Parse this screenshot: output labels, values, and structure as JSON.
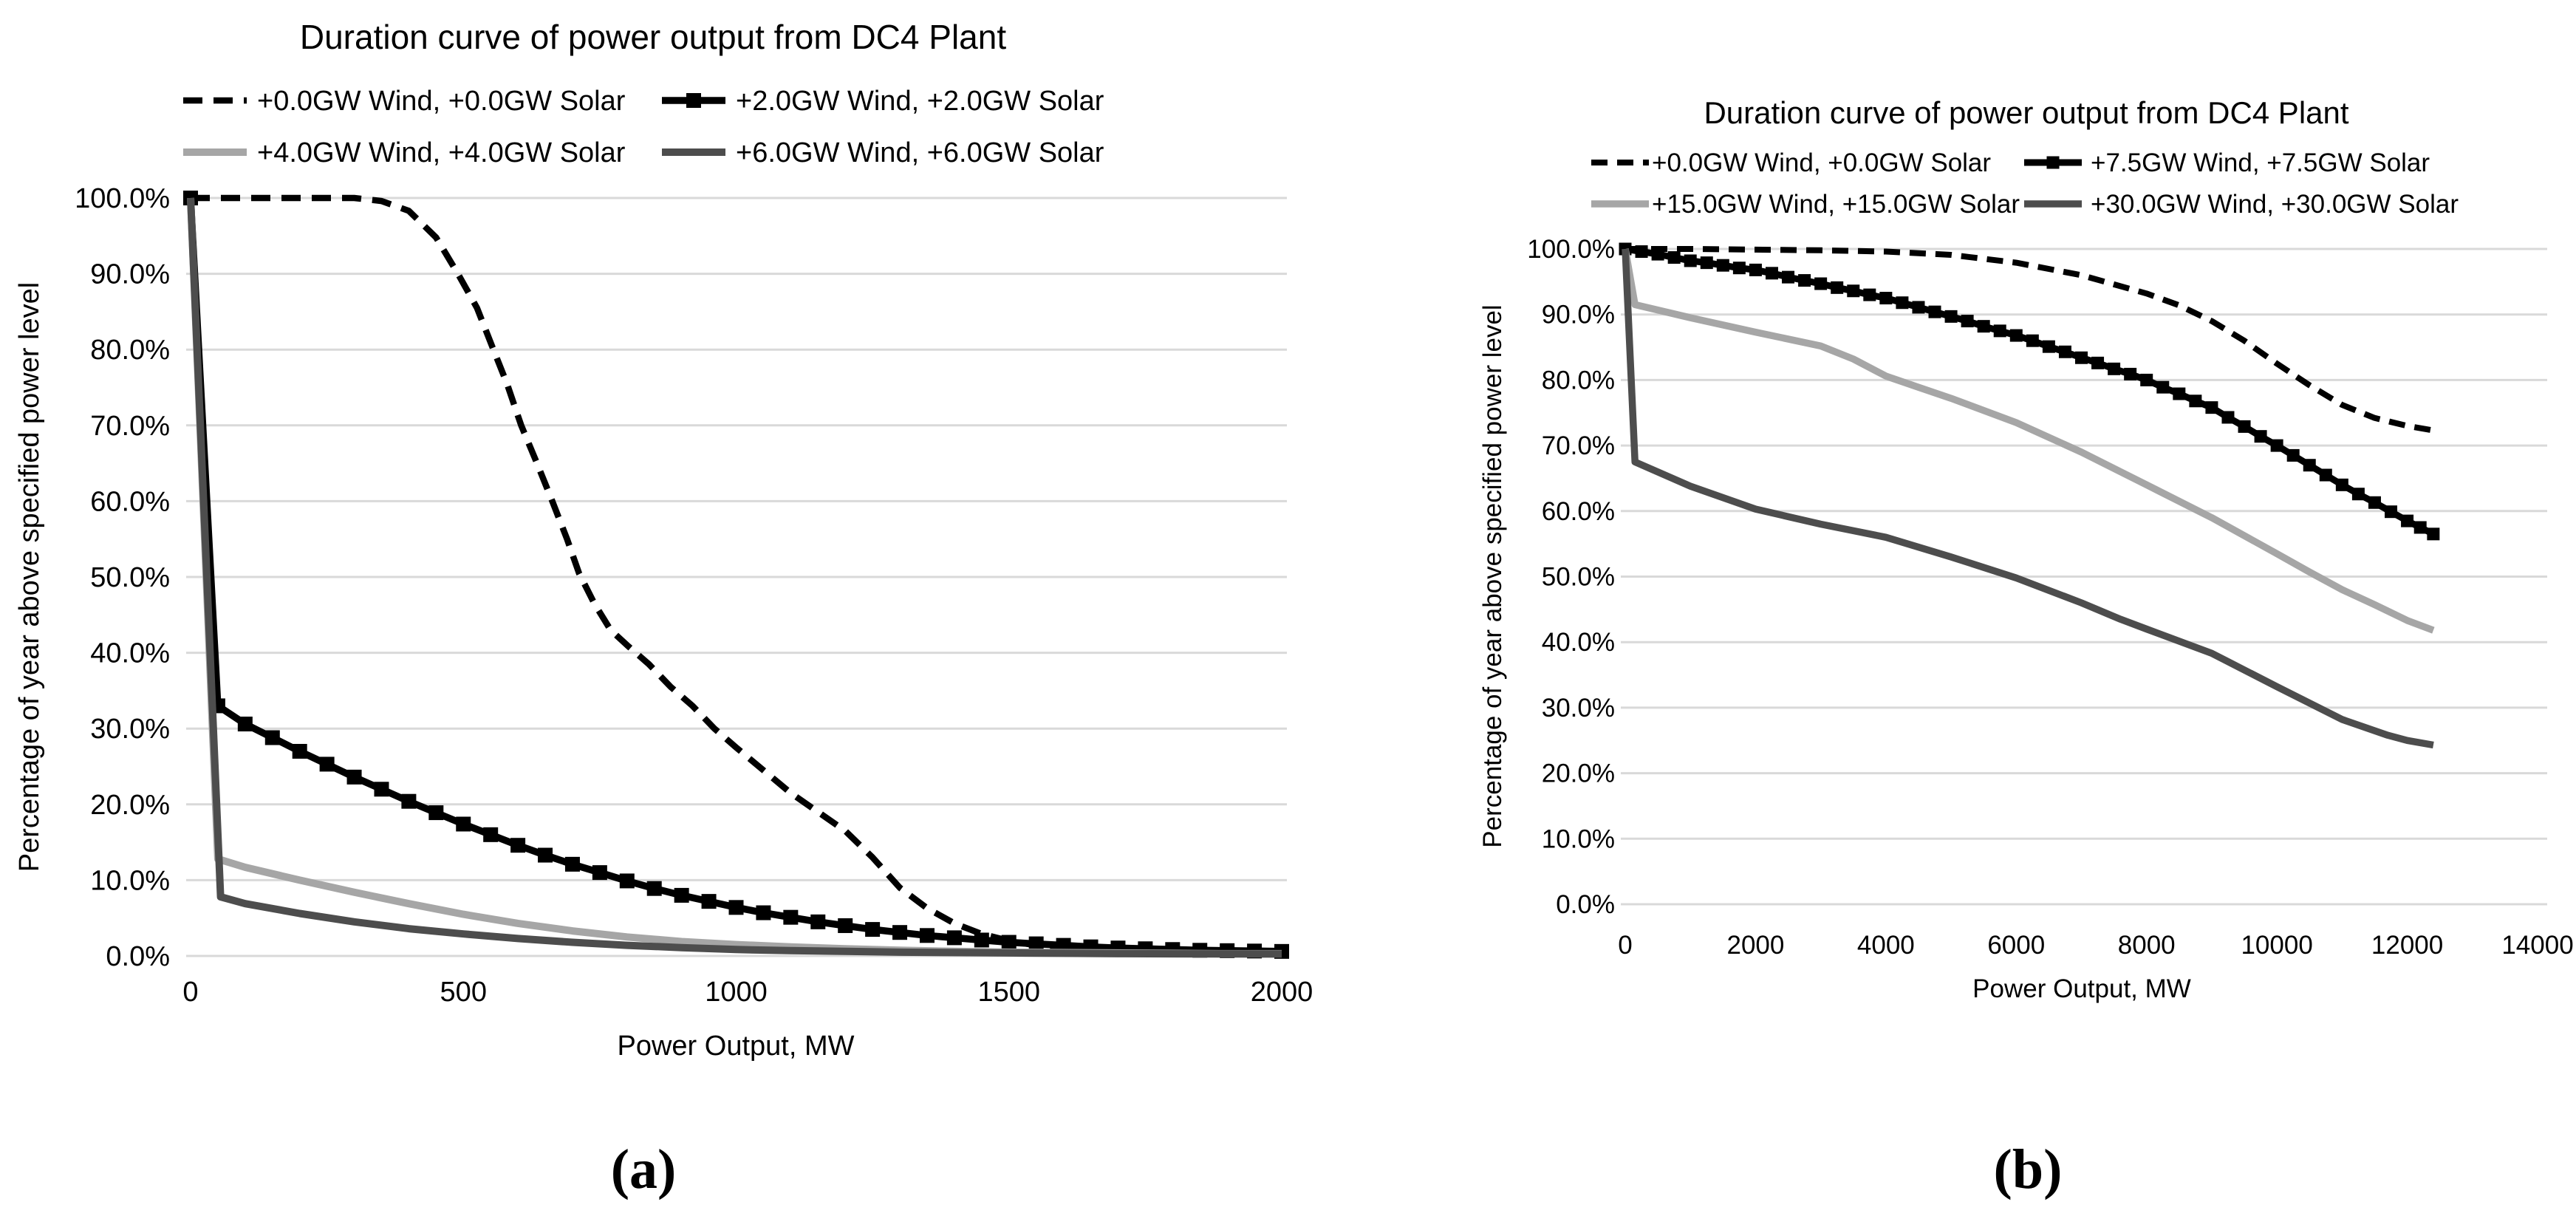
{
  "captions": {
    "a": "(a)",
    "b": "(b)"
  },
  "colors": {
    "series_black": "#000000",
    "series_light_gray": "#a6a6a6",
    "series_dark_gray": "#4d4d4d",
    "gridline": "#d9d9d9",
    "text": "#000000",
    "background": "#ffffff"
  },
  "chart_data": [
    {
      "type": "line",
      "panel": "a",
      "title": "Duration curve of power output from DC4 Plant",
      "xlabel": "Power Output, MW",
      "ylabel": "Percentage of year above specified power level",
      "xlim": [
        0,
        2000
      ],
      "ylim": [
        0,
        100
      ],
      "x_ticks": [
        0,
        500,
        1000,
        1500,
        2000
      ],
      "y_tick_labels": [
        "0.0%",
        "10.0%",
        "20.0%",
        "30.0%",
        "40.0%",
        "50.0%",
        "60.0%",
        "70.0%",
        "80.0%",
        "90.0%",
        "100.0%"
      ],
      "grid": "horizontal",
      "legend_position": "top",
      "series": [
        {
          "name": "+0.0GW Wind, +0.0GW Solar",
          "style": "dashed",
          "color": "#000000",
          "points": [
            [
              0,
              100
            ],
            [
              150,
              100
            ],
            [
              300,
              100
            ],
            [
              350,
              99.6
            ],
            [
              400,
              98.3
            ],
            [
              450,
              94.8
            ],
            [
              490,
              90
            ],
            [
              525,
              85.5
            ],
            [
              555,
              80
            ],
            [
              580,
              75.5
            ],
            [
              606,
              70
            ],
            [
              635,
              65
            ],
            [
              663,
              60
            ],
            [
              690,
              55
            ],
            [
              712,
              50.5
            ],
            [
              740,
              46.5
            ],
            [
              770,
              43
            ],
            [
              800,
              41
            ],
            [
              840,
              38.5
            ],
            [
              880,
              35.5
            ],
            [
              920,
              33
            ],
            [
              960,
              30
            ],
            [
              1000,
              27.5
            ],
            [
              1050,
              24.5
            ],
            [
              1100,
              21.5
            ],
            [
              1150,
              19
            ],
            [
              1200,
              16.5
            ],
            [
              1250,
              13
            ],
            [
              1300,
              9
            ],
            [
              1350,
              6.3
            ],
            [
              1400,
              4.3
            ],
            [
              1450,
              2.9
            ],
            [
              1500,
              2
            ],
            [
              1550,
              1.4
            ],
            [
              1600,
              1
            ],
            [
              1700,
              0.7
            ],
            [
              1800,
              0.55
            ],
            [
              1900,
              0.45
            ],
            [
              2000,
              0.4
            ]
          ]
        },
        {
          "name": "+2.0GW Wind, +2.0GW Solar",
          "style": "marker",
          "color": "#000000",
          "points": [
            [
              0,
              100
            ],
            [
              50,
              33
            ],
            [
              100,
              30.6
            ],
            [
              150,
              28.8
            ],
            [
              200,
              27
            ],
            [
              250,
              25.3
            ],
            [
              300,
              23.6
            ],
            [
              350,
              22
            ],
            [
              400,
              20.4
            ],
            [
              450,
              18.9
            ],
            [
              500,
              17.4
            ],
            [
              550,
              16
            ],
            [
              600,
              14.6
            ],
            [
              650,
              13.3
            ],
            [
              700,
              12.1
            ],
            [
              750,
              11
            ],
            [
              800,
              9.9
            ],
            [
              850,
              8.9
            ],
            [
              900,
              8
            ],
            [
              950,
              7.2
            ],
            [
              1000,
              6.4
            ],
            [
              1050,
              5.7
            ],
            [
              1100,
              5.1
            ],
            [
              1150,
              4.5
            ],
            [
              1200,
              4
            ],
            [
              1250,
              3.5
            ],
            [
              1300,
              3.1
            ],
            [
              1350,
              2.7
            ],
            [
              1400,
              2.4
            ],
            [
              1450,
              2.1
            ],
            [
              1500,
              1.8
            ],
            [
              1550,
              1.6
            ],
            [
              1600,
              1.4
            ],
            [
              1650,
              1.2
            ],
            [
              1700,
              1.05
            ],
            [
              1750,
              0.95
            ],
            [
              1800,
              0.85
            ],
            [
              1850,
              0.75
            ],
            [
              1900,
              0.7
            ],
            [
              1950,
              0.65
            ],
            [
              2000,
              0.6
            ]
          ]
        },
        {
          "name": "+4.0GW Wind, +4.0GW Solar",
          "style": "solid",
          "color": "#a6a6a6",
          "points": [
            [
              0,
              100
            ],
            [
              50,
              12.8
            ],
            [
              100,
              11.7
            ],
            [
              200,
              10
            ],
            [
              300,
              8.4
            ],
            [
              400,
              6.9
            ],
            [
              500,
              5.5
            ],
            [
              600,
              4.3
            ],
            [
              700,
              3.3
            ],
            [
              800,
              2.5
            ],
            [
              900,
              1.9
            ],
            [
              1000,
              1.5
            ],
            [
              1100,
              1.2
            ],
            [
              1200,
              0.95
            ],
            [
              1300,
              0.75
            ],
            [
              1400,
              0.6
            ],
            [
              1500,
              0.5
            ],
            [
              1600,
              0.45
            ],
            [
              1700,
              0.4
            ],
            [
              1800,
              0.35
            ],
            [
              1900,
              0.3
            ],
            [
              2000,
              0.3
            ]
          ]
        },
        {
          "name": "+6.0GW Wind, +6.0GW Solar",
          "style": "solid",
          "color": "#4d4d4d",
          "points": [
            [
              0,
              100
            ],
            [
              55,
              7.8
            ],
            [
              100,
              6.9
            ],
            [
              200,
              5.6
            ],
            [
              300,
              4.5
            ],
            [
              400,
              3.6
            ],
            [
              500,
              2.9
            ],
            [
              600,
              2.3
            ],
            [
              700,
              1.8
            ],
            [
              800,
              1.4
            ],
            [
              900,
              1.1
            ],
            [
              1000,
              0.85
            ],
            [
              1100,
              0.7
            ],
            [
              1200,
              0.6
            ],
            [
              1300,
              0.5
            ],
            [
              1400,
              0.45
            ],
            [
              1500,
              0.4
            ],
            [
              1600,
              0.35
            ],
            [
              1700,
              0.3
            ],
            [
              1800,
              0.28
            ],
            [
              1900,
              0.26
            ],
            [
              2000,
              0.25
            ]
          ]
        }
      ]
    },
    {
      "type": "line",
      "panel": "b",
      "title": "Duration curve of power output from DC4 Plant",
      "xlabel": "Power Output, MW",
      "ylabel": "Percentage of year above specified power level",
      "xlim": [
        0,
        14000
      ],
      "ylim": [
        0,
        100
      ],
      "x_ticks": [
        0,
        2000,
        4000,
        6000,
        8000,
        10000,
        12000,
        14000
      ],
      "y_tick_labels": [
        "0.0%",
        "10.0%",
        "20.0%",
        "30.0%",
        "40.0%",
        "50.0%",
        "60.0%",
        "70.0%",
        "80.0%",
        "90.0%",
        "100.0%"
      ],
      "grid": "horizontal",
      "legend_position": "top",
      "series": [
        {
          "name": "+0.0GW Wind, +0.0GW Solar",
          "style": "dashed",
          "color": "#000000",
          "points": [
            [
              0,
              100
            ],
            [
              1000,
              100
            ],
            [
              2000,
              99.9
            ],
            [
              3000,
              99.8
            ],
            [
              4000,
              99.6
            ],
            [
              5000,
              99.1
            ],
            [
              6000,
              97.9
            ],
            [
              7000,
              96
            ],
            [
              8000,
              93.2
            ],
            [
              8500,
              91.4
            ],
            [
              9000,
              89
            ],
            [
              9500,
              86
            ],
            [
              10000,
              82.5
            ],
            [
              10500,
              79.2
            ],
            [
              11000,
              76.2
            ],
            [
              11500,
              74.2
            ],
            [
              12000,
              73
            ],
            [
              12400,
              72.3
            ]
          ]
        },
        {
          "name": "+7.5GW Wind, +7.5GW Solar",
          "style": "marker",
          "color": "#000000",
          "points": [
            [
              0,
              100
            ],
            [
              250,
              99.6
            ],
            [
              500,
              99.2
            ],
            [
              750,
              98.7
            ],
            [
              1000,
              98.2
            ],
            [
              1250,
              97.9
            ],
            [
              1500,
              97.5
            ],
            [
              1750,
              97.1
            ],
            [
              2000,
              96.8
            ],
            [
              2250,
              96.3
            ],
            [
              2500,
              95.7
            ],
            [
              2750,
              95.2
            ],
            [
              3000,
              94.7
            ],
            [
              3250,
              94.1
            ],
            [
              3500,
              93.6
            ],
            [
              3750,
              93
            ],
            [
              4000,
              92.5
            ],
            [
              4250,
              91.8
            ],
            [
              4500,
              91.1
            ],
            [
              4750,
              90.4
            ],
            [
              5000,
              89.7
            ],
            [
              5250,
              89
            ],
            [
              5500,
              88.2
            ],
            [
              5750,
              87.5
            ],
            [
              6000,
              86.8
            ],
            [
              6250,
              86
            ],
            [
              6500,
              85.1
            ],
            [
              6750,
              84.3
            ],
            [
              7000,
              83.4
            ],
            [
              7250,
              82.6
            ],
            [
              7500,
              81.7
            ],
            [
              7750,
              80.9
            ],
            [
              8000,
              80
            ],
            [
              8250,
              78.9
            ],
            [
              8500,
              77.9
            ],
            [
              8750,
              76.8
            ],
            [
              9000,
              75.8
            ],
            [
              9250,
              74.3
            ],
            [
              9500,
              72.9
            ],
            [
              9750,
              71.4
            ],
            [
              10000,
              70
            ],
            [
              10250,
              68.5
            ],
            [
              10500,
              67
            ],
            [
              10750,
              65.5
            ],
            [
              11000,
              64
            ],
            [
              11250,
              62.6
            ],
            [
              11500,
              61.3
            ],
            [
              11750,
              59.9
            ],
            [
              12000,
              58.5
            ],
            [
              12200,
              57.5
            ],
            [
              12400,
              56.5
            ]
          ]
        },
        {
          "name": "+15.0GW Wind, +15.0GW Solar",
          "style": "solid",
          "color": "#a6a6a6",
          "points": [
            [
              0,
              100
            ],
            [
              150,
              91.5
            ],
            [
              1000,
              89.5
            ],
            [
              2000,
              87.3
            ],
            [
              3000,
              85.2
            ],
            [
              3500,
              83.2
            ],
            [
              4000,
              80.6
            ],
            [
              4500,
              78.9
            ],
            [
              5000,
              77.2
            ],
            [
              6000,
              73.5
            ],
            [
              7000,
              69
            ],
            [
              8000,
              64
            ],
            [
              9000,
              59
            ],
            [
              10000,
              53.5
            ],
            [
              10500,
              50.7
            ],
            [
              11000,
              48
            ],
            [
              11500,
              45.7
            ],
            [
              12000,
              43.3
            ],
            [
              12400,
              41.8
            ]
          ]
        },
        {
          "name": "+30.0GW Wind, +30.0GW Solar",
          "style": "solid",
          "color": "#4d4d4d",
          "points": [
            [
              0,
              100
            ],
            [
              150,
              67.5
            ],
            [
              1000,
              63.8
            ],
            [
              2000,
              60.3
            ],
            [
              3000,
              58
            ],
            [
              3500,
              57
            ],
            [
              4000,
              56
            ],
            [
              5000,
              53
            ],
            [
              6000,
              49.8
            ],
            [
              7000,
              46
            ],
            [
              7600,
              43.5
            ],
            [
              8000,
              42
            ],
            [
              9000,
              38.3
            ],
            [
              10000,
              33.2
            ],
            [
              11000,
              28.2
            ],
            [
              11700,
              25.8
            ],
            [
              12000,
              25
            ],
            [
              12400,
              24.3
            ]
          ]
        }
      ]
    }
  ]
}
